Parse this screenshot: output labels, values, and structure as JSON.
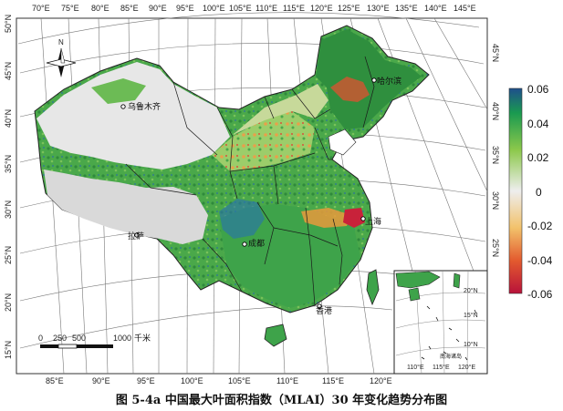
{
  "caption": "图 5-4a 中国最大叶面积指数（MLAI）30 年变化趋势分布图",
  "top_lon_labels": [
    "70°E",
    "75°E",
    "80°E",
    "85°E",
    "90°E",
    "95°E",
    "100°E",
    "105°E",
    "110°E",
    "115°E",
    "120°E",
    "125°E",
    "130°E",
    "135°E",
    "140°E",
    "145°E"
  ],
  "bottom_lon_labels": [
    "85°E",
    "90°E",
    "95°E",
    "100°E",
    "105°E",
    "110°E",
    "115°E",
    "120°E"
  ],
  "left_lat_labels": [
    "50°N",
    "45°N",
    "40°N",
    "35°N",
    "30°N",
    "25°N",
    "20°N",
    "15°N"
  ],
  "right_lat_labels": [
    "45°N",
    "40°N",
    "35°N",
    "30°N",
    "25°N"
  ],
  "cities": {
    "urumqi": "乌鲁木齐",
    "harbin": "哈尔滨",
    "shanghai": "上海",
    "lhasa": "拉萨",
    "chengdu": "成都",
    "hongkong": "香港"
  },
  "north_arrow": "N",
  "scale_bar": {
    "ticks": [
      "0",
      "250",
      "500",
      "1000"
    ],
    "unit": "千米"
  },
  "inset": {
    "lat_labels": [
      "20°N",
      "15°N",
      "10°N"
    ],
    "lon_labels": [
      "110°E",
      "115°E",
      "120°E"
    ],
    "title": "南海诸岛"
  },
  "legend": {
    "ticks": [
      "0.06",
      "0.04",
      "0.02",
      "0",
      "-0.02",
      "-0.04",
      "-0.06"
    ],
    "colors": [
      "#1e4f8c",
      "#1a9a50",
      "#8cc84b",
      "#eeeeee",
      "#f2c26b",
      "#e35a2e",
      "#b8123a"
    ]
  }
}
